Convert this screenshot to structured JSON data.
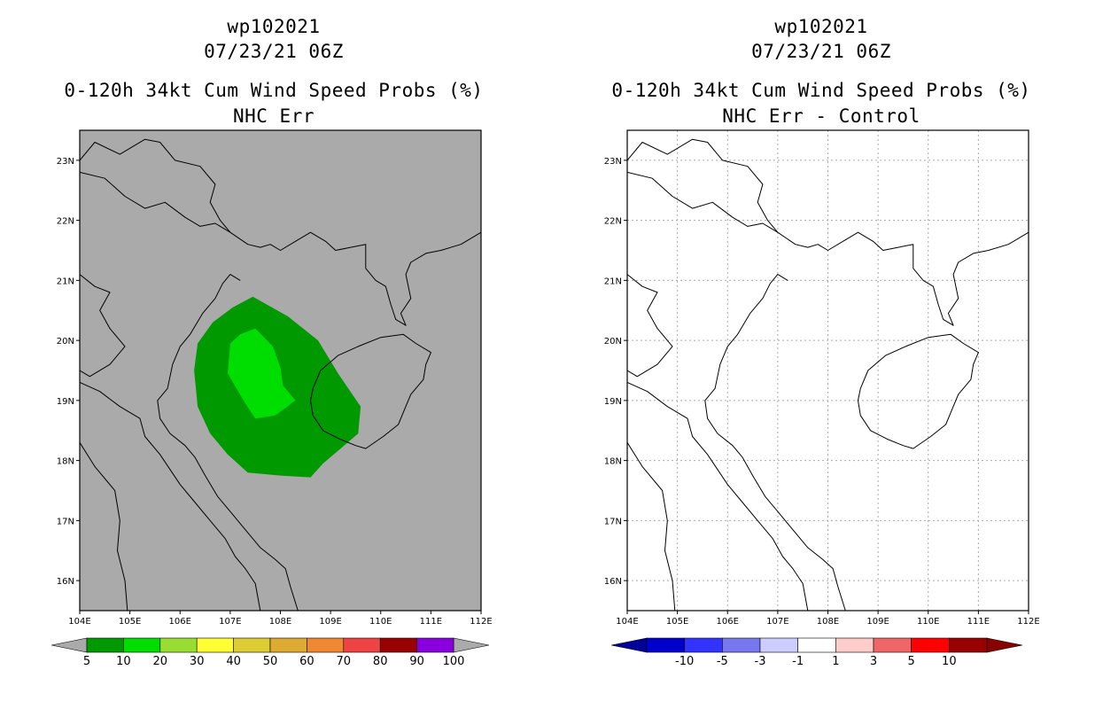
{
  "chart_data": [
    {
      "type": "contour-map",
      "storm_id": "wp102021",
      "datetime": "07/23/21 06Z",
      "title": "0-120h 34kt Cum Wind Speed Probs (%)",
      "subtitle": "NHC Err",
      "xlim": [
        104,
        112
      ],
      "ylim": [
        15.5,
        23.5
      ],
      "x_ticks": [
        {
          "value": 104,
          "label": "104E"
        },
        {
          "value": 105,
          "label": "105E"
        },
        {
          "value": 106,
          "label": "106E"
        },
        {
          "value": 107,
          "label": "107E"
        },
        {
          "value": 108,
          "label": "108E"
        },
        {
          "value": 109,
          "label": "109E"
        },
        {
          "value": 110,
          "label": "110E"
        },
        {
          "value": 111,
          "label": "111E"
        },
        {
          "value": 112,
          "label": "112E"
        }
      ],
      "y_ticks": [
        {
          "value": 16,
          "label": "16N"
        },
        {
          "value": 17,
          "label": "17N"
        },
        {
          "value": 18,
          "label": "18N"
        },
        {
          "value": 19,
          "label": "19N"
        },
        {
          "value": 20,
          "label": "20N"
        },
        {
          "value": 21,
          "label": "21N"
        },
        {
          "value": 22,
          "label": "22N"
        },
        {
          "value": 23,
          "label": "23N"
        }
      ],
      "background_color": "#aaaaaa",
      "grid": false,
      "contours": [
        {
          "level": "5-10",
          "color": "#009900",
          "polygon": [
            [
              107.45,
              20.73
            ],
            [
              108.15,
              20.4
            ],
            [
              108.75,
              20.0
            ],
            [
              109.15,
              19.45
            ],
            [
              109.6,
              18.9
            ],
            [
              109.55,
              18.45
            ],
            [
              109.2,
              18.2
            ],
            [
              108.85,
              17.95
            ],
            [
              108.6,
              17.72
            ],
            [
              108.0,
              17.75
            ],
            [
              107.35,
              17.8
            ],
            [
              106.95,
              18.1
            ],
            [
              106.6,
              18.45
            ],
            [
              106.35,
              18.9
            ],
            [
              106.28,
              19.5
            ],
            [
              106.35,
              19.95
            ],
            [
              106.65,
              20.3
            ],
            [
              107.05,
              20.55
            ]
          ]
        },
        {
          "level": "10-20",
          "color": "#00dd00",
          "polygon": [
            [
              107.5,
              20.2
            ],
            [
              107.85,
              19.9
            ],
            [
              108.0,
              19.55
            ],
            [
              108.05,
              19.25
            ],
            [
              108.3,
              19.0
            ],
            [
              107.9,
              18.75
            ],
            [
              107.5,
              18.7
            ],
            [
              107.3,
              18.95
            ],
            [
              106.95,
              19.45
            ],
            [
              107.0,
              19.95
            ],
            [
              107.2,
              20.1
            ]
          ]
        }
      ],
      "colorbar": {
        "labels": [
          "5",
          "10",
          "20",
          "30",
          "40",
          "50",
          "60",
          "70",
          "80",
          "90",
          "100"
        ],
        "colors": [
          "#009900",
          "#00dd00",
          "#99dd33",
          "#ffff33",
          "#ddcc33",
          "#ddaa33",
          "#ee8833",
          "#ee4444",
          "#990000",
          "#8800dd"
        ],
        "end_low_color": "#aaaaaa",
        "end_high_color": "#aaaaaa"
      }
    },
    {
      "type": "contour-map",
      "storm_id": "wp102021",
      "datetime": "07/23/21 06Z",
      "title": "0-120h 34kt Cum Wind Speed Probs (%)",
      "subtitle": "NHC Err - Control",
      "xlim": [
        104,
        112
      ],
      "ylim": [
        15.5,
        23.5
      ],
      "x_ticks": [
        {
          "value": 104,
          "label": "104E"
        },
        {
          "value": 105,
          "label": "105E"
        },
        {
          "value": 106,
          "label": "106E"
        },
        {
          "value": 107,
          "label": "107E"
        },
        {
          "value": 108,
          "label": "108E"
        },
        {
          "value": 109,
          "label": "109E"
        },
        {
          "value": 110,
          "label": "110E"
        },
        {
          "value": 111,
          "label": "111E"
        },
        {
          "value": 112,
          "label": "112E"
        }
      ],
      "y_ticks": [
        {
          "value": 16,
          "label": "16N"
        },
        {
          "value": 17,
          "label": "17N"
        },
        {
          "value": 18,
          "label": "18N"
        },
        {
          "value": 19,
          "label": "19N"
        },
        {
          "value": 20,
          "label": "20N"
        },
        {
          "value": 21,
          "label": "21N"
        },
        {
          "value": 22,
          "label": "22N"
        },
        {
          "value": 23,
          "label": "23N"
        }
      ],
      "background_color": "#ffffff",
      "grid": true,
      "contours": [],
      "colorbar": {
        "labels": [
          "-10",
          "-5",
          "-3",
          "-1",
          "1",
          "3",
          "5",
          "10"
        ],
        "colors": [
          "#0000cc",
          "#3333ff",
          "#7777ee",
          "#ccccff",
          "#ffffff",
          "#ffcccc",
          "#ee6666",
          "#ff0000",
          "#990000"
        ],
        "end_low_color": "#000099",
        "end_high_color": "#880000"
      }
    }
  ],
  "coastlines": {
    "mainland": [
      [
        104.0,
        23.0
      ],
      [
        104.3,
        23.3
      ],
      [
        104.8,
        23.1
      ],
      [
        105.3,
        23.35
      ],
      [
        105.6,
        23.3
      ],
      [
        105.9,
        23.0
      ],
      [
        106.4,
        22.9
      ],
      [
        106.7,
        22.6
      ],
      [
        106.6,
        22.3
      ],
      [
        106.8,
        22.0
      ],
      [
        107.0,
        21.8
      ],
      [
        107.35,
        21.6
      ],
      [
        107.6,
        21.55
      ],
      [
        107.8,
        21.6
      ],
      [
        108.0,
        21.5
      ],
      [
        108.3,
        21.65
      ],
      [
        108.6,
        21.8
      ],
      [
        108.9,
        21.65
      ],
      [
        109.1,
        21.5
      ],
      [
        109.4,
        21.55
      ],
      [
        109.7,
        21.6
      ],
      [
        109.7,
        21.2
      ],
      [
        109.9,
        21.0
      ],
      [
        110.1,
        20.9
      ],
      [
        110.2,
        20.6
      ],
      [
        110.3,
        20.35
      ],
      [
        110.5,
        20.25
      ],
      [
        110.4,
        20.45
      ],
      [
        110.6,
        20.7
      ],
      [
        110.5,
        21.1
      ],
      [
        110.6,
        21.3
      ],
      [
        110.9,
        21.45
      ],
      [
        111.2,
        21.5
      ],
      [
        111.6,
        21.6
      ],
      [
        111.9,
        21.75
      ],
      [
        112.0,
        21.8
      ]
    ],
    "vietnam": [
      [
        107.2,
        21.0
      ],
      [
        107.0,
        21.1
      ],
      [
        106.85,
        20.95
      ],
      [
        106.7,
        20.7
      ],
      [
        106.45,
        20.45
      ],
      [
        106.2,
        20.1
      ],
      [
        106.0,
        19.9
      ],
      [
        105.85,
        19.6
      ],
      [
        105.75,
        19.2
      ],
      [
        105.55,
        19.0
      ],
      [
        105.6,
        18.7
      ],
      [
        105.8,
        18.45
      ],
      [
        106.1,
        18.25
      ],
      [
        106.3,
        18.05
      ],
      [
        106.5,
        17.75
      ],
      [
        106.75,
        17.4
      ],
      [
        107.0,
        17.15
      ],
      [
        107.25,
        16.9
      ],
      [
        107.6,
        16.55
      ],
      [
        107.9,
        16.35
      ],
      [
        108.1,
        16.2
      ],
      [
        108.2,
        15.9
      ],
      [
        108.35,
        15.5
      ]
    ],
    "hainan": [
      [
        108.65,
        19.2
      ],
      [
        108.8,
        19.5
      ],
      [
        109.15,
        19.75
      ],
      [
        109.55,
        19.9
      ],
      [
        110.0,
        20.05
      ],
      [
        110.45,
        20.1
      ],
      [
        110.7,
        19.95
      ],
      [
        111.0,
        19.8
      ],
      [
        110.9,
        19.6
      ],
      [
        110.85,
        19.35
      ],
      [
        110.6,
        19.1
      ],
      [
        110.45,
        18.8
      ],
      [
        110.35,
        18.6
      ],
      [
        110.05,
        18.4
      ],
      [
        109.7,
        18.2
      ],
      [
        109.5,
        18.25
      ],
      [
        109.2,
        18.35
      ],
      [
        108.85,
        18.5
      ],
      [
        108.65,
        18.75
      ],
      [
        108.6,
        19.0
      ]
    ],
    "border_china_vn": [
      [
        104.0,
        22.8
      ],
      [
        104.5,
        22.7
      ],
      [
        104.9,
        22.4
      ],
      [
        105.3,
        22.2
      ],
      [
        105.7,
        22.3
      ],
      [
        106.1,
        22.05
      ],
      [
        106.4,
        21.9
      ],
      [
        106.7,
        21.95
      ],
      [
        107.0,
        21.8
      ]
    ],
    "border_laos_vn": [
      [
        104.0,
        21.1
      ],
      [
        104.3,
        20.9
      ],
      [
        104.6,
        20.8
      ],
      [
        104.4,
        20.5
      ],
      [
        104.6,
        20.2
      ],
      [
        104.9,
        19.9
      ],
      [
        104.6,
        19.6
      ],
      [
        104.2,
        19.4
      ],
      [
        104.0,
        19.5
      ]
    ],
    "border_laos_vn2": [
      [
        104.0,
        19.3
      ],
      [
        104.4,
        19.15
      ],
      [
        104.8,
        18.9
      ],
      [
        105.2,
        18.7
      ],
      [
        105.3,
        18.4
      ],
      [
        105.6,
        18.1
      ],
      [
        106.0,
        17.6
      ],
      [
        106.3,
        17.3
      ],
      [
        106.6,
        17.0
      ],
      [
        106.9,
        16.7
      ],
      [
        107.1,
        16.4
      ],
      [
        107.3,
        16.2
      ],
      [
        107.5,
        15.95
      ],
      [
        107.6,
        15.5
      ]
    ],
    "border_thai_laos": [
      [
        104.0,
        18.3
      ],
      [
        104.3,
        17.9
      ],
      [
        104.7,
        17.5
      ],
      [
        104.8,
        17.0
      ],
      [
        104.75,
        16.5
      ],
      [
        104.9,
        16.0
      ],
      [
        104.95,
        15.5
      ]
    ]
  }
}
